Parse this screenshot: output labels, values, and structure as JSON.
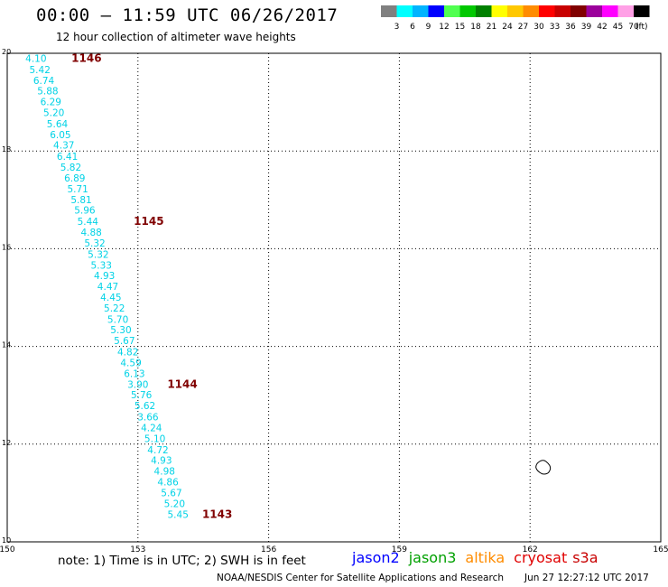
{
  "header": {
    "title": "00:00 — 11:59 UTC 06/26/2017",
    "subtitle": "12 hour collection of altimeter wave heights"
  },
  "legend": {
    "colors": [
      "#808080",
      "#00ffff",
      "#00b4ff",
      "#0000ff",
      "#50ff50",
      "#00c800",
      "#008000",
      "#ffff00",
      "#ffc800",
      "#ff8c00",
      "#ff0000",
      "#c80000",
      "#800000",
      "#9b009b",
      "#ff00ff",
      "#ffa0e6",
      "#000000"
    ],
    "labels": [
      "3",
      "6",
      "9",
      "12",
      "15",
      "18",
      "21",
      "24",
      "27",
      "30",
      "33",
      "36",
      "39",
      "42",
      "45",
      "70"
    ],
    "unit": "(ft)"
  },
  "footer": {
    "note": "note:  1) Time is in UTC;  2) SWH is in feet",
    "credit": "NOAA/NESDIS Center for Satellite Applications and Research",
    "timestamp": "Jun 27 12:27:12 UTC 2017",
    "satellites": [
      {
        "name": "jason2",
        "color": "#0000ff"
      },
      {
        "name": "jason3",
        "color": "#00a000"
      },
      {
        "name": "altika",
        "color": "#ff8c00"
      },
      {
        "name": "cryosat",
        "color": "#e00000"
      },
      {
        "name": "s3a",
        "color": "#c80000"
      }
    ]
  },
  "chart_data": {
    "type": "scatter",
    "xlim": [
      150,
      165
    ],
    "ylim": [
      10,
      20
    ],
    "x_ticks": [
      "150",
      "153",
      "156",
      "159",
      "162",
      "165"
    ],
    "y_ticks": [
      "10",
      "12",
      "14",
      "16",
      "18",
      "20"
    ],
    "grid": true,
    "text_color": "#00d2e6",
    "time_color": "#800000",
    "swh_points": [
      {
        "x": 150.66,
        "y": 19.9,
        "value": "4.10"
      },
      {
        "x": 150.75,
        "y": 19.67,
        "value": "5.42"
      },
      {
        "x": 150.84,
        "y": 19.45,
        "value": "6.74"
      },
      {
        "x": 150.93,
        "y": 19.23,
        "value": "5.88"
      },
      {
        "x": 151.0,
        "y": 19.01,
        "value": "6.29"
      },
      {
        "x": 151.07,
        "y": 18.79,
        "value": "5.20"
      },
      {
        "x": 151.15,
        "y": 18.56,
        "value": "5.64"
      },
      {
        "x": 151.22,
        "y": 18.34,
        "value": "6.05"
      },
      {
        "x": 151.3,
        "y": 18.12,
        "value": "4.37"
      },
      {
        "x": 151.38,
        "y": 17.89,
        "value": "6.41"
      },
      {
        "x": 151.46,
        "y": 17.67,
        "value": "5.82"
      },
      {
        "x": 151.55,
        "y": 17.45,
        "value": "6.89"
      },
      {
        "x": 151.62,
        "y": 17.23,
        "value": "5.71"
      },
      {
        "x": 151.7,
        "y": 17.01,
        "value": "5.81"
      },
      {
        "x": 151.78,
        "y": 16.79,
        "value": "5.96"
      },
      {
        "x": 151.85,
        "y": 16.56,
        "value": "5.44"
      },
      {
        "x": 151.93,
        "y": 16.34,
        "value": "4.88"
      },
      {
        "x": 152.01,
        "y": 16.12,
        "value": "5.32"
      },
      {
        "x": 152.09,
        "y": 15.89,
        "value": "5.32"
      },
      {
        "x": 152.16,
        "y": 15.67,
        "value": "5.33"
      },
      {
        "x": 152.23,
        "y": 15.45,
        "value": "4.93"
      },
      {
        "x": 152.31,
        "y": 15.23,
        "value": "4.47"
      },
      {
        "x": 152.38,
        "y": 15.01,
        "value": "4.45"
      },
      {
        "x": 152.46,
        "y": 14.79,
        "value": "5.22"
      },
      {
        "x": 152.54,
        "y": 14.56,
        "value": "5.70"
      },
      {
        "x": 152.61,
        "y": 14.34,
        "value": "5.30"
      },
      {
        "x": 152.69,
        "y": 14.12,
        "value": "5.67"
      },
      {
        "x": 152.77,
        "y": 13.89,
        "value": "4.82"
      },
      {
        "x": 152.84,
        "y": 13.67,
        "value": "4.59"
      },
      {
        "x": 152.92,
        "y": 13.45,
        "value": "6.13"
      },
      {
        "x": 153.0,
        "y": 13.23,
        "value": "3.90"
      },
      {
        "x": 153.08,
        "y": 13.01,
        "value": "5.76"
      },
      {
        "x": 153.16,
        "y": 12.79,
        "value": "5.62"
      },
      {
        "x": 153.23,
        "y": 12.56,
        "value": "3.66"
      },
      {
        "x": 153.31,
        "y": 12.34,
        "value": "4.24"
      },
      {
        "x": 153.39,
        "y": 12.12,
        "value": "5.10"
      },
      {
        "x": 153.46,
        "y": 11.89,
        "value": "4.72"
      },
      {
        "x": 153.54,
        "y": 11.67,
        "value": "4.93"
      },
      {
        "x": 153.61,
        "y": 11.45,
        "value": "4.98"
      },
      {
        "x": 153.69,
        "y": 11.23,
        "value": "4.86"
      },
      {
        "x": 153.77,
        "y": 11.01,
        "value": "5.67"
      },
      {
        "x": 153.84,
        "y": 10.79,
        "value": "5.20"
      },
      {
        "x": 153.92,
        "y": 10.56,
        "value": "5.45"
      }
    ],
    "time_labels": [
      {
        "x": 151.82,
        "y": 19.9,
        "label": "1146"
      },
      {
        "x": 153.25,
        "y": 16.56,
        "label": "1145"
      },
      {
        "x": 154.02,
        "y": 13.23,
        "label": "1144"
      },
      {
        "x": 154.82,
        "y": 10.56,
        "label": "1143"
      }
    ]
  }
}
